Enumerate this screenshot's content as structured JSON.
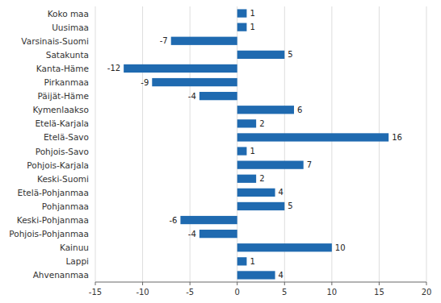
{
  "chart_data": {
    "type": "bar",
    "orientation": "horizontal",
    "categories": [
      "Koko maa",
      "Uusimaa",
      "Varsinais-Suomi",
      "Satakunta",
      "Kanta-Häme",
      "Pirkanmaa",
      "Päijät-Häme",
      "Kymenlaakso",
      "Etelä-Karjala",
      "Etelä-Savo",
      "Pohjois-Savo",
      "Pohjois-Karjala",
      "Keski-Suomi",
      "Etelä-Pohjanmaa",
      "Pohjanmaa",
      "Keski-Pohjanmaa",
      "Pohjois-Pohjanmaa",
      "Kainuu",
      "Lappi",
      "Ahvenanmaa"
    ],
    "values": [
      1,
      1,
      -7,
      5,
      -12,
      -9,
      -4,
      6,
      2,
      16,
      1,
      7,
      2,
      4,
      5,
      -6,
      -4,
      10,
      1,
      4
    ],
    "color": "#1f6ab0",
    "xlim": [
      -15,
      20
    ],
    "xticks": [
      -15,
      -10,
      -5,
      0,
      5,
      10,
      15,
      20
    ],
    "grid": true,
    "data_labels": true
  }
}
